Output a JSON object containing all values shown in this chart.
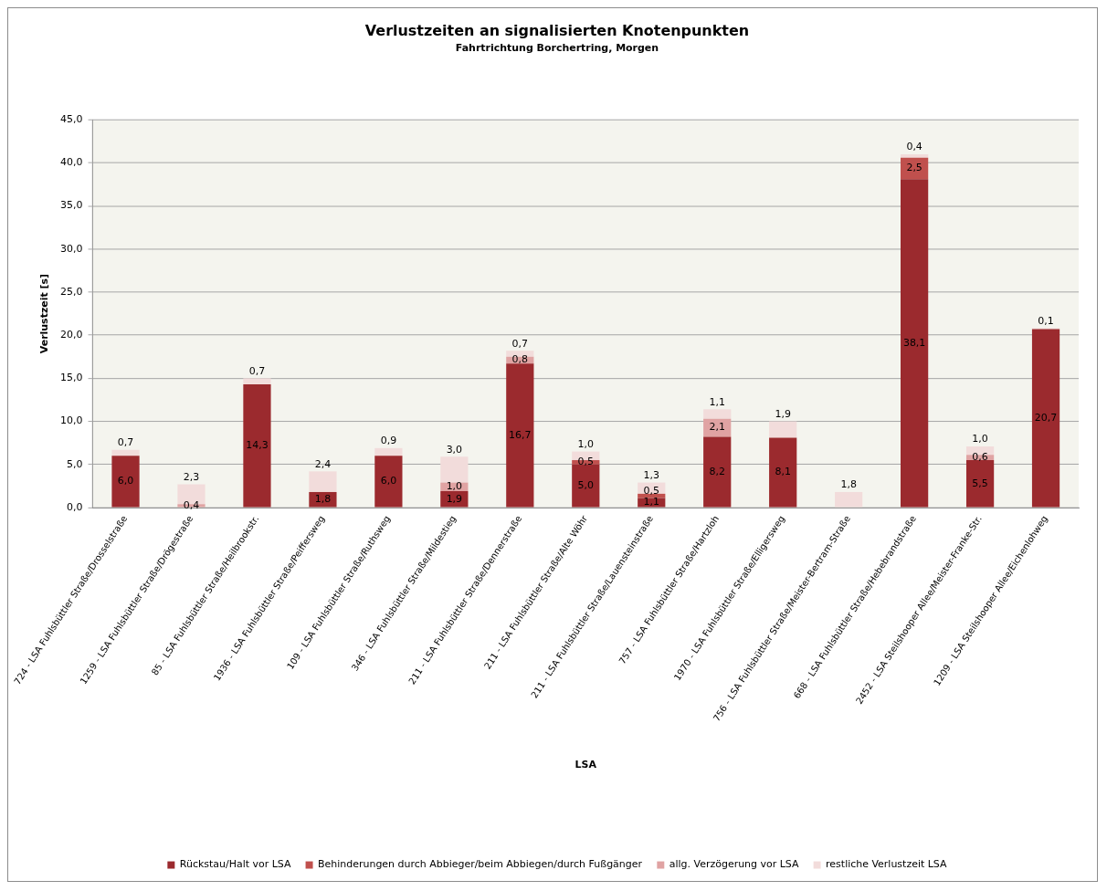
{
  "chart_data": {
    "type": "bar",
    "title": "Verlustzeiten an signalisierten Knotenpunkten",
    "subtitle": "Fahrtrichtung Borchertring, Morgen",
    "xlabel": "LSA",
    "ylabel": "Verlustzeit [s]",
    "categories": [
      "724 - LSA Fuhlsbüttler Straße/Drosselstraße",
      "1259 - LSA Fuhlsbüttler Straße/Drögestraße",
      "85 - LSA Fuhlsbüttler Straße/Heilbrookstr.",
      "1936 - LSA Fuhlsbüttler Straße/Peiffersweg",
      "109 - LSA Fuhlsbüttler Straße/Ruthsweg",
      "346 - LSA Fuhlsbüttler Straße/Mildestieg",
      "211 - LSA Fuhlsbüttler Straße/Dennerstraße",
      "211 - LSA Fuhlsbüttler Straße/Alte Wöhr",
      "211 - LSA Fuhlsbüttler Straße/Lauensteinstraße",
      "757 - LSA Fuhlsbüttler Straße/Hartzloh",
      "1970 - LSA Fuhlsbüttler Straße/Elligersweg",
      "756 - LSA Fuhlsbüttler Straße/Meister-Bertram-Straße",
      "668 - LSA Fuhlsbüttler Straße/Hebebrandstraße",
      "2452 - LSA Steilshooper Allee/Meister-Franke-Str.",
      "1209 - LSA Steilshooper Allee/Eichenlohweg"
    ],
    "stacked": true,
    "ylim": [
      0,
      45
    ],
    "yticks": [
      {
        "value": 0,
        "label": "0,0"
      },
      {
        "value": 5,
        "label": "5,0"
      },
      {
        "value": 10,
        "label": "10,0"
      },
      {
        "value": 15,
        "label": "15,0"
      },
      {
        "value": 20,
        "label": "20,0"
      },
      {
        "value": 25,
        "label": "25,0"
      },
      {
        "value": 30,
        "label": "30,0"
      },
      {
        "value": 35,
        "label": "35,0"
      },
      {
        "value": 40,
        "label": "40,0"
      },
      {
        "value": 45,
        "label": "45,0"
      }
    ],
    "grid": "y",
    "legend": "bottom",
    "series": [
      {
        "name": "Rückstau/Halt vor LSA",
        "color": "#9b2a2e",
        "values": [
          6.0,
          null,
          14.3,
          1.8,
          6.0,
          1.9,
          16.7,
          5.0,
          1.1,
          8.2,
          8.1,
          null,
          38.1,
          5.5,
          20.7
        ],
        "value_labels": [
          "6,0",
          null,
          "14,3",
          "1,8",
          "6,0",
          "1,9",
          "16,7",
          "5,0",
          "1,1",
          "8,2",
          "8,1",
          null,
          "38,1",
          "5,5",
          "20,7"
        ]
      },
      {
        "name": "Behinderungen durch Abbieger/beim Abbiegen/durch Fußgänger",
        "color": "#c0504d",
        "values": [
          null,
          null,
          null,
          null,
          null,
          null,
          null,
          0.5,
          0.5,
          null,
          null,
          null,
          2.5,
          null,
          null
        ],
        "value_labels": [
          null,
          null,
          null,
          null,
          null,
          null,
          null,
          "0,5",
          "0,5",
          null,
          null,
          null,
          "2,5",
          null,
          null
        ]
      },
      {
        "name": "allg. Verzögerung vor LSA",
        "color": "#e0a3a3",
        "values": [
          null,
          0.4,
          null,
          null,
          null,
          1.0,
          0.8,
          null,
          null,
          2.1,
          null,
          null,
          null,
          0.6,
          null
        ],
        "value_labels": [
          null,
          "0,4",
          null,
          null,
          null,
          "1,0",
          "0,8",
          null,
          null,
          "2,1",
          null,
          null,
          null,
          "0,6",
          null
        ]
      },
      {
        "name": "restliche Verlustzeit LSA",
        "color": "#f2dcdb",
        "values": [
          0.7,
          2.3,
          0.7,
          2.4,
          0.9,
          3.0,
          0.7,
          1.0,
          1.3,
          1.1,
          1.9,
          1.8,
          0.4,
          1.0,
          0.1
        ],
        "value_labels": [
          "0,7",
          "2,3",
          "0,7",
          "2,4",
          "0,9",
          "3,0",
          "0,7",
          "1,0",
          "1,3",
          "1,1",
          "1,9",
          "1,8",
          "0,4",
          "1,0",
          "0,1"
        ]
      }
    ]
  }
}
